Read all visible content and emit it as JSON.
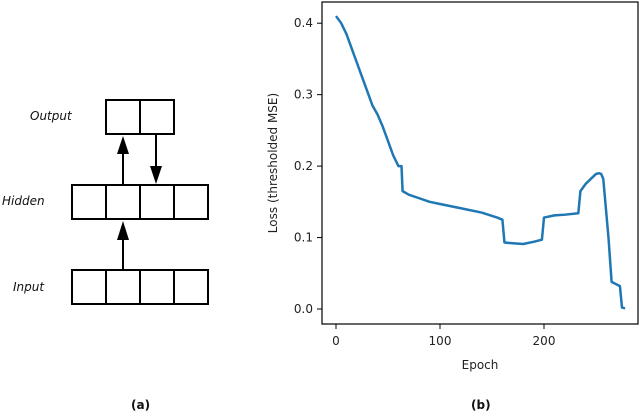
{
  "panel_a": {
    "caption": "(a)",
    "layers": [
      {
        "name": "Output",
        "cells": 2
      },
      {
        "name": "Hidden",
        "cells": 4
      },
      {
        "name": "Input",
        "cells": 4
      }
    ]
  },
  "panel_b": {
    "caption": "(b)"
  },
  "chart_data": {
    "type": "line",
    "title": "",
    "xlabel": "Epoch",
    "ylabel": "Loss (thresholded MSE)",
    "xticks": [
      0,
      100,
      200
    ],
    "yticks": [
      0.0,
      0.1,
      0.2,
      0.3,
      0.4
    ],
    "xlim": [
      -13,
      290
    ],
    "ylim": [
      -0.02,
      0.43
    ],
    "grid": false,
    "color": "#1f77b4",
    "series": [
      {
        "name": "loss",
        "x": [
          0,
          5,
          10,
          15,
          20,
          25,
          30,
          35,
          40,
          45,
          50,
          55,
          60,
          63,
          64,
          70,
          80,
          90,
          100,
          120,
          140,
          155,
          160,
          162,
          170,
          180,
          190,
          198,
          200,
          210,
          220,
          233,
          235,
          240,
          245,
          250,
          253,
          255,
          257,
          262,
          265,
          273,
          275,
          278
        ],
        "y": [
          0.41,
          0.4,
          0.385,
          0.365,
          0.345,
          0.325,
          0.305,
          0.285,
          0.272,
          0.255,
          0.235,
          0.215,
          0.2,
          0.2,
          0.165,
          0.16,
          0.155,
          0.15,
          0.147,
          0.141,
          0.135,
          0.128,
          0.125,
          0.093,
          0.092,
          0.091,
          0.094,
          0.097,
          0.128,
          0.131,
          0.132,
          0.134,
          0.165,
          0.175,
          0.182,
          0.189,
          0.19,
          0.189,
          0.182,
          0.1,
          0.038,
          0.032,
          0.002,
          0.001
        ]
      }
    ]
  }
}
